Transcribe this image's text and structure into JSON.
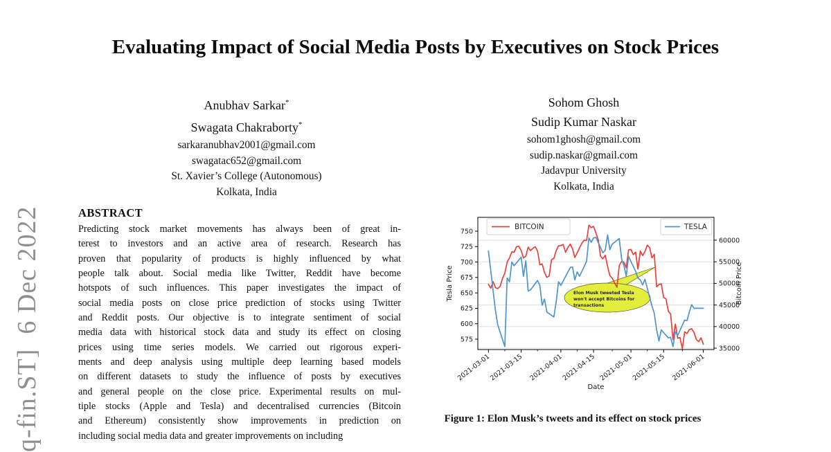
{
  "page": {
    "background": "#ffffff"
  },
  "arxiv_stamp": "q-fin.ST]  6 Dec 2022",
  "title": "Evaluating Impact of Social Media Posts by Executives on Stock Prices",
  "authors": {
    "left": {
      "names": [
        {
          "name": "Anubhav Sarkar",
          "mark": "*"
        },
        {
          "name": "Swagata Chakraborty",
          "mark": "*"
        }
      ],
      "emails": [
        "sarkaranubhav2001@gmail.com",
        "swagatac652@gmail.com"
      ],
      "affiliation": [
        "St. Xavier’s College (Autonomous)",
        "Kolkata, India"
      ]
    },
    "right": {
      "names": [
        {
          "name": "Sohom Ghosh",
          "mark": ""
        },
        {
          "name": "Sudip Kumar Naskar",
          "mark": ""
        }
      ],
      "emails": [
        "sohom1ghosh@gmail.com",
        "sudip.naskar@gmail.com"
      ],
      "affiliation": [
        "Jadavpur University",
        "Kolkata, India"
      ]
    }
  },
  "abstract": {
    "heading": "ABSTRACT",
    "lines": [
      "Predicting stock market movements has always been of great in-",
      "terest to investors and an active area of research. Research has",
      "proven that popularity of products is highly influenced by what",
      "people talk about. Social media like Twitter, Reddit have become",
      "hotspots of such influences. This paper investigates the impact of",
      "social media posts on close price prediction of stocks using Twitter",
      "and Reddit posts. Our objective is to integrate sentiment of social",
      "media data with historical stock data and study its effect on closing",
      "prices using time series models. We carried out rigorous experi-",
      "ments and deep analysis using multiple deep learning based models",
      "on different datasets to study the influence of posts by executives",
      "and general people on the close price. Experimental results on mul-",
      "tiple stocks (Apple and Tesla) and decentralised currencies (Bitcoin",
      "and Ethereum) consistently show improvements in prediction on",
      "including social media data and greater improvements on including"
    ]
  },
  "figure": {
    "caption": "Figure 1: Elon Musk’s tweets and its effect on stock prices"
  },
  "chart_data": {
    "type": "line",
    "xlabel": "Date",
    "x_ticks": [
      "2021-03-01",
      "2021-03-15",
      "2021-04-01",
      "2021-04-15",
      "2021-05-01",
      "2021-05-15",
      "2021-06-01"
    ],
    "x_tick_days": [
      0,
      14,
      31,
      45,
      61,
      75,
      92
    ],
    "x_minor_days": [
      7,
      21,
      38,
      53,
      68,
      83
    ],
    "x_range_days": [
      -4.55,
      96.55
    ],
    "grid": true,
    "left_axis": {
      "label": "Tesla Price",
      "ticks": [
        575,
        600,
        625,
        650,
        675,
        700,
        725,
        750
      ],
      "range": [
        558.2,
        772.4
      ]
    },
    "right_axis": {
      "label": "Bitcoin Price",
      "ticks": [
        35000,
        40000,
        45000,
        50000,
        55000,
        60000
      ],
      "range": [
        34680,
        65290
      ]
    },
    "legend": [
      {
        "label": "BITCOIN",
        "color": "#e8403a",
        "position": "top-left"
      },
      {
        "label": "TESLA",
        "color": "#4f94ca",
        "position": "top-right"
      }
    ],
    "annotation": {
      "text": "Elon Musk tweeted Tesla won't accept Bitcoins for transactions",
      "lines": [
        "Elon Musk tweeted Tesla",
        "won't accept Bitcoins for",
        "transactions"
      ],
      "fill": "#e2ee3b"
    },
    "series": [
      {
        "name": "BITCOIN",
        "axis": "right",
        "color": "#e8403a",
        "points": [
          [
            0,
            49800
          ],
          [
            1,
            48900
          ],
          [
            2,
            50400
          ],
          [
            3,
            49000
          ],
          [
            4,
            48800
          ],
          [
            5,
            49300
          ],
          [
            6,
            51100
          ],
          [
            7,
            52400
          ],
          [
            8,
            54900
          ],
          [
            9,
            55900
          ],
          [
            10,
            57300
          ],
          [
            11,
            57200
          ],
          [
            12,
            58500
          ],
          [
            13,
            58600
          ],
          [
            14,
            57600
          ],
          [
            15,
            55900
          ],
          [
            16,
            56300
          ],
          [
            17,
            58400
          ],
          [
            18,
            57600
          ],
          [
            19,
            58100
          ],
          [
            20,
            58500
          ],
          [
            21,
            57500
          ],
          [
            22,
            54300
          ],
          [
            23,
            54500
          ],
          [
            24,
            52500
          ],
          [
            25,
            51400
          ],
          [
            26,
            51700
          ],
          [
            27,
            55500
          ],
          [
            28,
            55800
          ],
          [
            29,
            57600
          ],
          [
            30,
            58700
          ],
          [
            31,
            58750
          ],
          [
            32,
            59000
          ],
          [
            33,
            57200
          ],
          [
            34,
            58300
          ],
          [
            35,
            59100
          ],
          [
            36,
            58000
          ],
          [
            37,
            56000
          ],
          [
            38,
            57100
          ],
          [
            39,
            58250
          ],
          [
            40,
            59300
          ],
          [
            41,
            60000
          ],
          [
            42,
            59900
          ],
          [
            43,
            63500
          ],
          [
            44,
            62900
          ],
          [
            45,
            63200
          ],
          [
            46,
            61700
          ],
          [
            47,
            60100
          ],
          [
            48,
            56300
          ],
          [
            49,
            55700
          ],
          [
            50,
            56500
          ],
          [
            51,
            53900
          ],
          [
            52,
            51800
          ],
          [
            53,
            51200
          ],
          [
            54,
            50100
          ],
          [
            55,
            49100
          ],
          [
            56,
            54100
          ],
          [
            57,
            55100
          ],
          [
            58,
            54900
          ],
          [
            59,
            53600
          ],
          [
            60,
            57750
          ],
          [
            61,
            57850
          ],
          [
            62,
            56650
          ],
          [
            63,
            57250
          ],
          [
            64,
            53300
          ],
          [
            65,
            57500
          ],
          [
            66,
            56450
          ],
          [
            67,
            57350
          ],
          [
            68,
            58850
          ],
          [
            69,
            58300
          ],
          [
            70,
            55900
          ],
          [
            71,
            56750
          ],
          [
            72,
            49200
          ],
          [
            73,
            49750
          ],
          [
            74,
            49900
          ],
          [
            75,
            46750
          ],
          [
            76,
            46450
          ],
          [
            77,
            43550
          ],
          [
            78,
            42900
          ],
          [
            79,
            37000
          ],
          [
            80,
            40600
          ],
          [
            81,
            37300
          ],
          [
            82,
            37450
          ],
          [
            83,
            34900
          ],
          [
            84,
            38800
          ],
          [
            85,
            38400
          ],
          [
            86,
            39300
          ],
          [
            87,
            39500
          ],
          [
            88,
            38600
          ],
          [
            89,
            37000
          ],
          [
            90,
            36500
          ],
          [
            91,
            37400
          ],
          [
            92,
            35900
          ]
        ]
      },
      {
        "name": "TESLA",
        "axis": "left",
        "color": "#4f94ca",
        "points": [
          [
            0,
            718
          ],
          [
            1,
            686
          ],
          [
            2,
            653
          ],
          [
            3,
            621
          ],
          [
            4,
            598
          ],
          [
            7,
            563
          ],
          [
            8,
            674
          ],
          [
            9,
            668
          ],
          [
            10,
            700
          ],
          [
            11,
            694
          ],
          [
            14,
            708
          ],
          [
            15,
            677
          ],
          [
            16,
            702
          ],
          [
            17,
            653
          ],
          [
            18,
            655
          ],
          [
            21,
            670
          ],
          [
            22,
            662
          ],
          [
            23,
            630
          ],
          [
            24,
            640
          ],
          [
            25,
            619
          ],
          [
            28,
            611
          ],
          [
            29,
            636
          ],
          [
            30,
            668
          ],
          [
            31,
            662
          ],
          [
            35,
            691
          ],
          [
            36,
            692
          ],
          [
            37,
            671
          ],
          [
            38,
            684
          ],
          [
            39,
            677
          ],
          [
            42,
            701
          ],
          [
            43,
            739
          ],
          [
            44,
            732
          ],
          [
            45,
            739
          ],
          [
            46,
            740
          ],
          [
            49,
            715
          ],
          [
            50,
            719
          ],
          [
            51,
            744
          ],
          [
            52,
            720
          ],
          [
            53,
            729
          ],
          [
            56,
            738
          ],
          [
            57,
            705
          ],
          [
            58,
            694
          ],
          [
            59,
            677
          ],
          [
            60,
            709
          ],
          [
            63,
            685
          ],
          [
            64,
            674
          ],
          [
            65,
            671
          ],
          [
            66,
            663
          ],
          [
            67,
            672
          ],
          [
            70,
            629
          ],
          [
            71,
            617
          ],
          [
            72,
            590
          ],
          [
            73,
            572
          ],
          [
            74,
            590
          ],
          [
            77,
            577
          ],
          [
            78,
            578
          ],
          [
            79,
            563
          ],
          [
            80,
            587
          ],
          [
            81,
            581
          ],
          [
            84,
            606
          ],
          [
            85,
            605
          ],
          [
            86,
            619
          ],
          [
            87,
            631
          ],
          [
            88,
            625
          ],
          [
            92,
            625
          ]
        ]
      }
    ]
  }
}
